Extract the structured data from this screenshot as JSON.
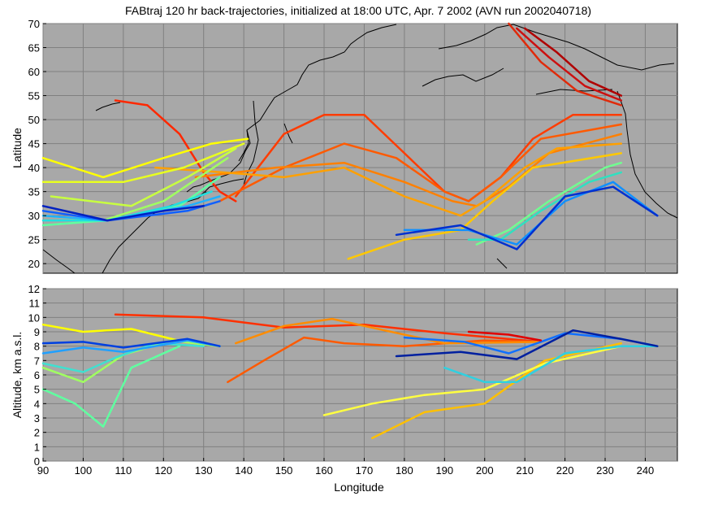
{
  "figure": {
    "title": "FABtraj 120 hr back-trajectories, initialized at 18:00 UTC, Apr. 7 2002 (AVN run 2002040718)"
  },
  "chart_data": [
    {
      "type": "line",
      "panel": "map",
      "ylabel": "Latitude",
      "xlim": [
        90,
        248
      ],
      "ylim": [
        18,
        70
      ],
      "x_ticks": [
        90,
        100,
        110,
        120,
        130,
        140,
        150,
        160,
        170,
        180,
        190,
        200,
        210,
        220,
        230,
        240
      ],
      "y_ticks": [
        20,
        25,
        30,
        35,
        40,
        45,
        50,
        55,
        60,
        65,
        70
      ],
      "grid": true,
      "background": "#a8a8a8",
      "coastline_color": "#000000",
      "series": [
        {
          "color": "#b00000",
          "x": [
            210,
            218,
            226,
            234
          ],
          "y": [
            69,
            64,
            58,
            55
          ]
        },
        {
          "color": "#cc1010",
          "x": [
            208,
            216,
            225,
            234
          ],
          "y": [
            69,
            63,
            57,
            54
          ]
        },
        {
          "color": "#e02a0a",
          "x": [
            206,
            214,
            223,
            234
          ],
          "y": [
            70,
            62,
            56,
            53
          ]
        },
        {
          "color": "#ff2800",
          "x": [
            108,
            116,
            124,
            130,
            134,
            138
          ],
          "y": [
            54,
            53,
            47,
            39,
            35,
            33
          ]
        },
        {
          "color": "#ff3c00",
          "x": [
            138,
            150,
            160,
            170,
            180,
            190,
            196,
            204,
            212,
            222,
            234
          ],
          "y": [
            34,
            47,
            51,
            51,
            43,
            35,
            33,
            38,
            46,
            51,
            51
          ]
        },
        {
          "color": "#ff5a00",
          "x": [
            134,
            150,
            165,
            178,
            190,
            196,
            204,
            214,
            234
          ],
          "y": [
            33,
            40,
            45,
            42,
            35,
            33,
            38,
            46,
            49
          ]
        },
        {
          "color": "#ff8000",
          "x": [
            128,
            148,
            165,
            180,
            192,
            198,
            206,
            216,
            234
          ],
          "y": [
            38,
            40,
            41,
            37,
            33,
            32,
            36,
            43,
            47
          ]
        },
        {
          "color": "#ffa000",
          "x": [
            118,
            135,
            150,
            165,
            180,
            194,
            200,
            210,
            218,
            234
          ],
          "y": [
            40,
            39,
            38,
            40,
            34,
            30,
            33,
            40,
            44,
            45
          ]
        },
        {
          "color": "#ffc800",
          "x": [
            166,
            180,
            194,
            202,
            212,
            234
          ],
          "y": [
            21,
            25,
            27,
            33,
            40,
            43
          ]
        },
        {
          "color": "#ffff00",
          "x": [
            90,
            105,
            120,
            132,
            141
          ],
          "y": [
            42,
            38,
            42,
            45,
            46
          ]
        },
        {
          "color": "#e8ff20",
          "x": [
            90,
            110,
            125,
            140
          ],
          "y": [
            37,
            37,
            40,
            45
          ]
        },
        {
          "color": "#c8ff40",
          "x": [
            92,
            112,
            126,
            138
          ],
          "y": [
            34,
            32,
            38,
            44
          ]
        },
        {
          "color": "#a0ff60",
          "x": [
            90,
            105,
            120,
            136
          ],
          "y": [
            30,
            29,
            33,
            42
          ]
        },
        {
          "color": "#60ffa0",
          "x": [
            90,
            106,
            124,
            134
          ],
          "y": [
            28,
            29,
            32,
            38
          ]
        },
        {
          "color": "#20e0e0",
          "x": [
            90,
            106,
            122,
            132
          ],
          "y": [
            29,
            29,
            32,
            35
          ]
        },
        {
          "color": "#20b0ff",
          "x": [
            90,
            106,
            126,
            134
          ],
          "y": [
            30,
            29,
            32,
            34
          ]
        },
        {
          "color": "#1060ff",
          "x": [
            90,
            106,
            126,
            134
          ],
          "y": [
            31,
            29,
            31,
            33
          ]
        },
        {
          "color": "#0020c0",
          "x": [
            90,
            106,
            120,
            130
          ],
          "y": [
            32,
            29,
            31,
            32
          ]
        },
        {
          "color": "#70ff90",
          "x": [
            198,
            206,
            216,
            230,
            234
          ],
          "y": [
            24,
            27,
            33,
            40,
            41
          ]
        },
        {
          "color": "#30e0c0",
          "x": [
            196,
            204,
            214,
            226,
            234
          ],
          "y": [
            25,
            25,
            31,
            37,
            39
          ]
        },
        {
          "color": "#1090ff",
          "x": [
            180,
            196,
            208,
            220,
            232,
            243
          ],
          "y": [
            27,
            27,
            24,
            33,
            37,
            30
          ]
        },
        {
          "color": "#0030d0",
          "x": [
            178,
            194,
            208,
            220,
            232,
            243
          ],
          "y": [
            26,
            28,
            23,
            34,
            36,
            30
          ]
        }
      ]
    },
    {
      "type": "line",
      "panel": "altitude",
      "ylabel": "Altitude, km a.s.l.",
      "xlabel": "Longitude",
      "xlim": [
        90,
        248
      ],
      "ylim": [
        0,
        12
      ],
      "x_ticks": [
        90,
        100,
        110,
        120,
        130,
        140,
        150,
        160,
        170,
        180,
        190,
        200,
        210,
        220,
        230,
        240
      ],
      "y_ticks": [
        0,
        1,
        2,
        3,
        4,
        5,
        6,
        7,
        8,
        9,
        10,
        11,
        12
      ],
      "grid": true,
      "background": "#a8a8a8",
      "series": [
        {
          "color": "#ff3000",
          "x": [
            108,
            130,
            150,
            170,
            190,
            214
          ],
          "y": [
            10.2,
            10.0,
            9.3,
            9.5,
            8.9,
            8.3
          ]
        },
        {
          "color": "#ff5a00",
          "x": [
            136,
            145,
            155,
            165,
            180,
            200,
            214
          ],
          "y": [
            5.5,
            7.0,
            8.6,
            8.2,
            8.0,
            8.4,
            8.3
          ]
        },
        {
          "color": "#ff8c00",
          "x": [
            138,
            150,
            162,
            175,
            190,
            214
          ],
          "y": [
            8.2,
            9.4,
            9.9,
            9.1,
            8.2,
            8.3
          ]
        },
        {
          "color": "#ffc000",
          "x": [
            172,
            185,
            200,
            215,
            234
          ],
          "y": [
            1.6,
            3.4,
            4.0,
            7.0,
            8.2
          ]
        },
        {
          "color": "#ffff00",
          "x": [
            90,
            100,
            112,
            125,
            134
          ],
          "y": [
            9.5,
            9.0,
            9.2,
            8.3,
            8.0
          ]
        },
        {
          "color": "#ffff40",
          "x": [
            160,
            172,
            185,
            200,
            215,
            234
          ],
          "y": [
            3.2,
            4.0,
            4.6,
            5.0,
            6.8,
            8.0
          ]
        },
        {
          "color": "#a0ff60",
          "x": [
            90,
            100,
            110,
            122,
            134
          ],
          "y": [
            6.5,
            5.5,
            7.4,
            8.4,
            8.0
          ]
        },
        {
          "color": "#60ffa0",
          "x": [
            90,
            98,
            105,
            112,
            124
          ],
          "y": [
            5.0,
            4.0,
            2.4,
            6.5,
            8.0
          ]
        },
        {
          "color": "#40e0d0",
          "x": [
            90,
            100,
            108,
            118,
            130
          ],
          "y": [
            6.8,
            6.2,
            7.2,
            8.2,
            8.0
          ]
        },
        {
          "color": "#20a0ff",
          "x": [
            90,
            100,
            110,
            126,
            134
          ],
          "y": [
            7.5,
            7.9,
            7.6,
            8.4,
            8.0
          ]
        },
        {
          "color": "#0040e0",
          "x": [
            90,
            100,
            110,
            126,
            134
          ],
          "y": [
            8.2,
            8.3,
            7.9,
            8.5,
            8.0
          ]
        },
        {
          "color": "#1070ff",
          "x": [
            180,
            195,
            206,
            220,
            234,
            243
          ],
          "y": [
            8.6,
            8.3,
            7.5,
            8.9,
            8.5,
            8.0
          ]
        },
        {
          "color": "#30d0e0",
          "x": [
            190,
            200,
            208,
            220,
            234,
            243
          ],
          "y": [
            6.5,
            5.5,
            5.5,
            7.5,
            8.0,
            8.0
          ]
        },
        {
          "color": "#0020a0",
          "x": [
            178,
            194,
            208,
            222,
            234,
            243
          ],
          "y": [
            7.3,
            7.6,
            7.1,
            9.1,
            8.5,
            8.0
          ]
        },
        {
          "color": "#e00000",
          "x": [
            196,
            206,
            214
          ],
          "y": [
            9.0,
            8.8,
            8.4
          ]
        }
      ]
    }
  ]
}
